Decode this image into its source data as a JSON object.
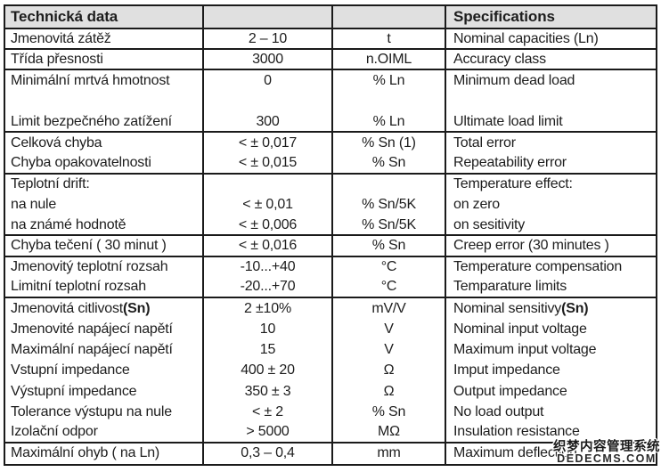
{
  "table": {
    "border_color": "#1a1a1a",
    "header_bg": "#e0e0e0",
    "text_color": "#1d1d1d",
    "header": {
      "czech": "Technická data",
      "english": "Specifications"
    },
    "rows": [
      {
        "czech": "Jmenovitá zátěž",
        "value": "2 – 10",
        "unit": "t",
        "english": "Nominal capacities (Ln)",
        "sep": true
      },
      {
        "czech": "Třída přesnosti",
        "value": "3000",
        "unit": "n.OIML",
        "english": "Accuracy class",
        "sep": true
      },
      {
        "czech": "Minimální mrtvá hmotnost",
        "value": "0",
        "unit": "% Ln",
        "english": "Minimum dead load",
        "sep": false
      },
      {
        "czech": "",
        "value": "",
        "unit": "",
        "english": "",
        "sep": false
      },
      {
        "czech": "Limit bezpečného zatížení",
        "value": "300",
        "unit": "% Ln",
        "english": "Ultimate load limit",
        "sep": true
      },
      {
        "czech": "Celková chyba",
        "value": "< ± 0,017",
        "unit": "% Sn (1)",
        "english": "Total error",
        "sep": false
      },
      {
        "czech": "Chyba opakovatelnosti",
        "value": "< ± 0,015",
        "unit": "% Sn",
        "english": "Repeatability error",
        "sep": true
      },
      {
        "czech": "Teplotní drift:",
        "value": "",
        "unit": "",
        "english": "Temperature effect:",
        "sep": false
      },
      {
        "czech": "na nule",
        "value": "< ± 0,01",
        "unit": "% Sn/5K",
        "english": "on zero",
        "sep": false
      },
      {
        "czech": "na známé hodnotě",
        "value": "< ± 0,006",
        "unit": "% Sn/5K",
        "english": "on sesitivity",
        "sep": true
      },
      {
        "czech": "Chyba tečení ( 30 minut )",
        "value": "< ± 0,016",
        "unit": "% Sn",
        "english": "Creep error (30 minutes )",
        "sep": true
      },
      {
        "czech": "Jmenovitý teplotní rozsah",
        "value": "-10...+40",
        "unit": "°C",
        "english": "Temperature compensation",
        "sep": false
      },
      {
        "czech": "Limitní teplotní rozsah",
        "value": "-20...+70",
        "unit": "°C",
        "english": "Temparature limits",
        "sep": true
      },
      {
        "czech": "Jmenovitá citlivost ",
        "czech_bold": "(Sn)",
        "value": "2 ±10%",
        "unit": "mV/V",
        "english": "Nominal sensitivy ",
        "english_bold": "(Sn)",
        "sep": false
      },
      {
        "czech": "Jmenovité napájecí napětí",
        "value": "10",
        "unit": "V",
        "english": "Nominal input voltage",
        "sep": false
      },
      {
        "czech": "Maximální napájecí napětí",
        "value": "15",
        "unit": "V",
        "english": "Maximum input voltage",
        "sep": false
      },
      {
        "czech": "Vstupní impedance",
        "value": "400 ± 20",
        "unit": "Ω",
        "english": "Imput impedance",
        "sep": false
      },
      {
        "czech": "Výstupní impedance",
        "value": "350 ± 3",
        "unit": "Ω",
        "english": "Output impedance",
        "sep": false
      },
      {
        "czech": "Tolerance výstupu na nule",
        "value": "< ± 2",
        "unit": "% Sn",
        "english": "No load output",
        "sep": false
      },
      {
        "czech": "Izolační odpor",
        "value": "> 5000",
        "unit": "MΩ",
        "english": "Insulation resistance",
        "sep": true
      },
      {
        "czech": "Maximální ohyb ( na Ln)",
        "value": "0,3 – 0,4",
        "unit": "mm",
        "english": "Maximum deflection",
        "sep": false
      }
    ]
  },
  "watermark": {
    "line1": "织梦内容管理系统",
    "line2": "DEDECMS.COM"
  }
}
